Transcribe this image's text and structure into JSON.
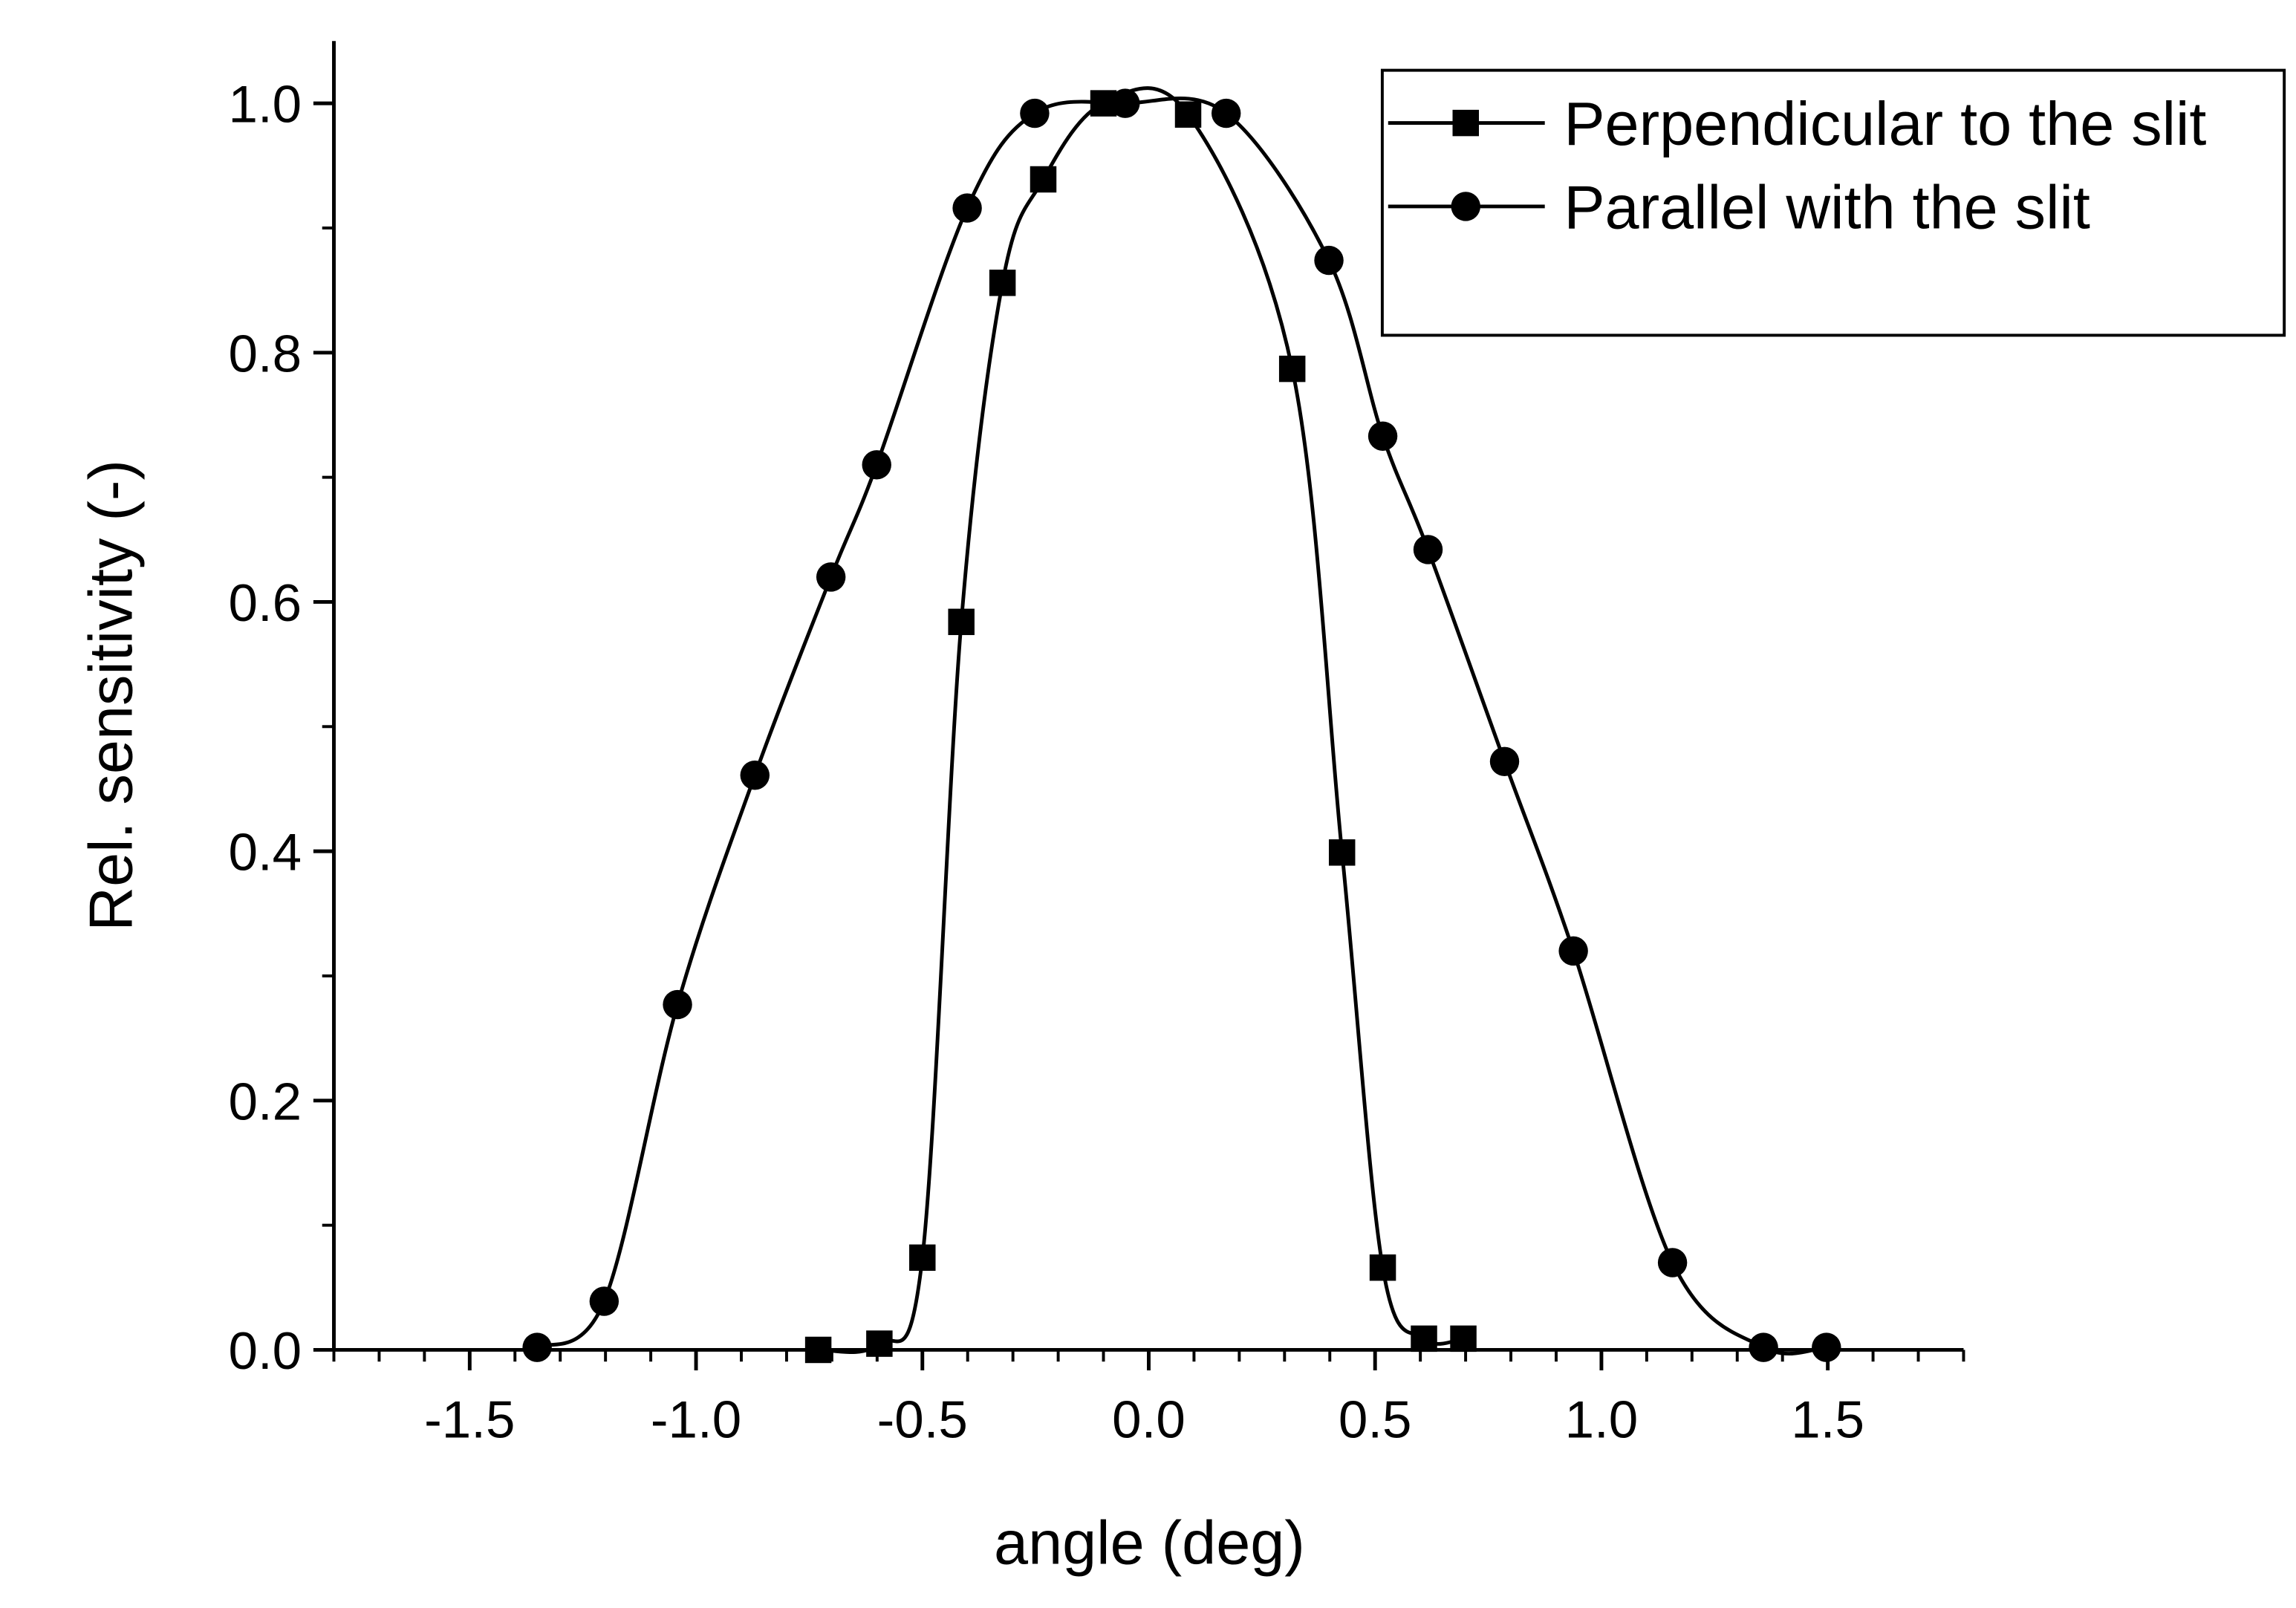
{
  "chart_data": {
    "type": "line",
    "x_label": "angle (deg)",
    "y_label": "Rel. sensitivity (-)",
    "xlim": [
      -1.8,
      1.8
    ],
    "ylim": [
      0,
      1.05
    ],
    "xticks": [
      -1.5,
      {
        "value": -1.0,
        "label": "-1.0"
      },
      -0.5,
      {
        "value": 0,
        "label": "0.0"
      },
      0.5,
      {
        "value": 1.0,
        "label": "1.0"
      },
      1.5
    ],
    "yticks": [
      {
        "value": 0,
        "label": "0.0"
      },
      0.2,
      0.4,
      0.6,
      0.8,
      {
        "value": 1.0,
        "label": "1.0"
      }
    ],
    "legend": "upper right",
    "series": [
      {
        "name": "Perpendicular to the slit",
        "color": "#000000",
        "marker": "square",
        "x": [
          -0.73,
          -0.595,
          -0.5,
          -0.414,
          -0.323,
          -0.233,
          -0.1,
          0.087,
          0.317,
          0.427,
          0.517,
          0.608,
          0.695
        ],
        "values": [
          0,
          0.005,
          0.074,
          0.584,
          0.856,
          0.939,
          1.0,
          0.991,
          0.787,
          0.399,
          0.066,
          0.009,
          0.009
        ]
      },
      {
        "name": "Parallel with the slit",
        "color": "#000000",
        "marker": "circle",
        "x": [
          -1.351,
          -1.203,
          -1.041,
          -0.87,
          -0.702,
          -0.601,
          -0.401,
          -0.252,
          -0.052,
          0.171,
          0.398,
          0.517,
          0.617,
          0.786,
          0.938,
          1.157,
          1.358,
          1.497
        ],
        "values": [
          0.002,
          0.039,
          0.277,
          0.461,
          0.62,
          0.71,
          0.916,
          0.992,
          1.0,
          0.992,
          0.874,
          0.733,
          0.642,
          0.472,
          0.32,
          0.07,
          0.002,
          0.002
        ]
      }
    ]
  }
}
